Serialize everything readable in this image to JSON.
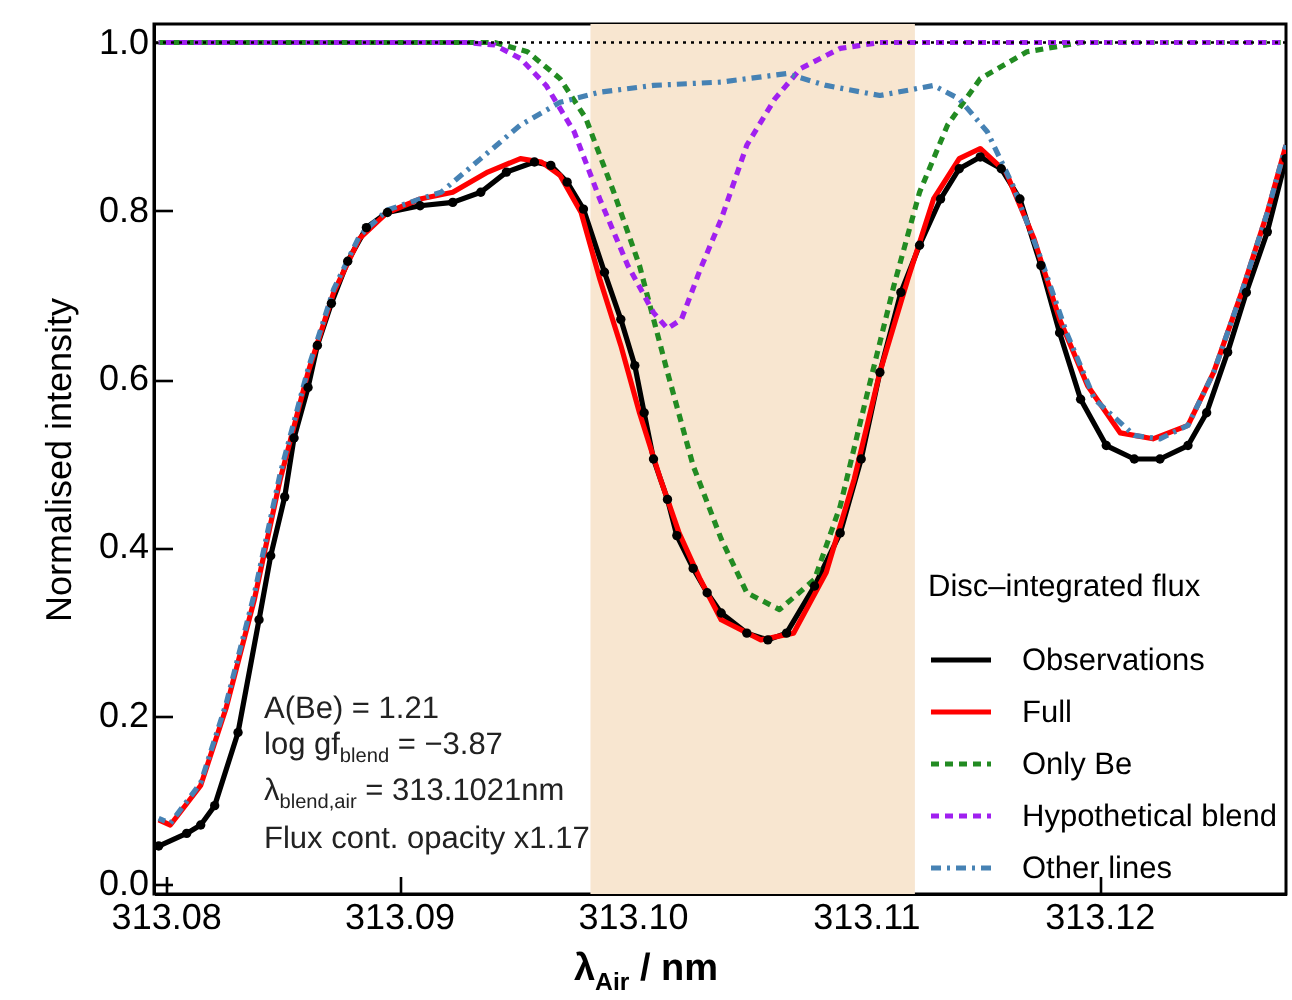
{
  "chart_data": {
    "type": "line",
    "xlabel": "λ$_{Air}$ / nm",
    "ylabel": "Normalised intensity",
    "legend_title": "Disc–integrated flux",
    "legend": "bottom right",
    "xlim": [
      313.0795,
      313.128
    ],
    "ylim": [
      -0.012,
      1.022
    ],
    "xticks": [
      313.08,
      313.09,
      {
        "value": 313.1,
        "label": "313.10"
      },
      313.11,
      313.12
    ],
    "yticks": [
      {
        "value": 0,
        "label": "0.0"
      },
      0.2,
      0.4,
      0.6,
      0.8,
      {
        "value": 1,
        "label": "1.0"
      }
    ],
    "bands": [
      {
        "axis": "x",
        "from": 313.0982,
        "to": 313.1121,
        "color": "#f8e6d0"
      }
    ],
    "ref_lines": [
      {
        "axis": "y",
        "value": 1,
        "color": "#000000",
        "line_style": "dotted"
      }
    ],
    "annotations": [
      "A(Be) = 1.21",
      "log gf$_{blend}$ = −3.87",
      "λ$_{blend,air}$ = 313.1021nm",
      "Flux cont. opacity x1.17"
    ],
    "series": [
      {
        "name": "Observations",
        "color": "#000000",
        "line_style": "solid",
        "marker": "circle",
        "x": [
          313.0797,
          313.0809,
          313.0815,
          313.0821,
          313.0831,
          313.084,
          313.0845,
          313.0851,
          313.0855,
          313.0861,
          313.0865,
          313.0871,
          313.0878,
          313.0886,
          313.0895,
          313.0909,
          313.0923,
          313.0935,
          313.0946,
          313.0958,
          313.0965,
          313.0972,
          313.0979,
          313.0988,
          313.0995,
          313.1001,
          313.1005,
          313.1009,
          313.1015,
          313.1019,
          313.1026,
          313.1032,
          313.1038,
          313.1049,
          313.1058,
          313.1066,
          313.1078,
          313.1089,
          313.1098,
          313.1106,
          313.1115,
          313.1123,
          313.1132,
          313.114,
          313.1149,
          313.1158,
          313.1166,
          313.1175,
          313.1183,
          313.1192,
          313.1203,
          313.1215,
          313.1226,
          313.1238,
          313.1246,
          313.1255,
          313.1263,
          313.1272,
          313.128
        ],
        "values": [
          0.045,
          0.06,
          0.07,
          0.093,
          0.18,
          0.314,
          0.39,
          0.46,
          0.53,
          0.59,
          0.64,
          0.69,
          0.74,
          0.78,
          0.798,
          0.806,
          0.81,
          0.822,
          0.846,
          0.858,
          0.854,
          0.834,
          0.802,
          0.727,
          0.671,
          0.616,
          0.56,
          0.505,
          0.457,
          0.414,
          0.375,
          0.346,
          0.322,
          0.298,
          0.29,
          0.298,
          0.354,
          0.417,
          0.505,
          0.608,
          0.703,
          0.759,
          0.814,
          0.85,
          0.864,
          0.85,
          0.814,
          0.735,
          0.655,
          0.576,
          0.521,
          0.505,
          0.505,
          0.521,
          0.56,
          0.632,
          0.703,
          0.775,
          0.862
        ]
      },
      {
        "name": "Full",
        "color": "#ff0000",
        "line_style": "solid",
        "x": [
          313.0797,
          313.0802,
          313.0815,
          313.0826,
          313.0838,
          313.0849,
          313.0861,
          313.0872,
          313.0883,
          313.0895,
          313.0909,
          313.0923,
          313.0938,
          313.0952,
          313.0961,
          313.0969,
          313.0978,
          313.0986,
          313.0995,
          313.1003,
          313.1012,
          313.102,
          313.1029,
          313.1038,
          313.1055,
          313.1069,
          313.1083,
          313.1095,
          313.1106,
          313.1118,
          313.1129,
          313.114,
          313.1149,
          313.116,
          313.1172,
          313.1183,
          313.1195,
          313.1209,
          313.1223,
          313.1238,
          313.1249,
          313.1261,
          313.1272,
          313.128
        ],
        "values": [
          0.076,
          0.07,
          0.117,
          0.21,
          0.338,
          0.48,
          0.608,
          0.703,
          0.767,
          0.798,
          0.814,
          0.822,
          0.846,
          0.862,
          0.858,
          0.842,
          0.798,
          0.719,
          0.64,
          0.56,
          0.481,
          0.417,
          0.362,
          0.314,
          0.29,
          0.298,
          0.37,
          0.481,
          0.608,
          0.719,
          0.814,
          0.862,
          0.874,
          0.846,
          0.767,
          0.671,
          0.592,
          0.536,
          0.529,
          0.545,
          0.608,
          0.703,
          0.798,
          0.878
        ]
      },
      {
        "name": "Only Be",
        "color": "#228b22",
        "line_style": "dashed",
        "x": [
          313.0797,
          313.0941,
          313.0955,
          313.0969,
          313.098,
          313.0992,
          313.1003,
          313.1015,
          313.1026,
          313.1038,
          313.1049,
          313.1063,
          313.1078,
          313.1089,
          313.11,
          313.1112,
          313.1123,
          313.1135,
          313.1149,
          313.1169,
          313.1192,
          313.128
        ],
        "values": [
          1.0,
          1.0,
          0.989,
          0.957,
          0.91,
          0.822,
          0.735,
          0.608,
          0.497,
          0.41,
          0.346,
          0.326,
          0.362,
          0.449,
          0.576,
          0.711,
          0.822,
          0.902,
          0.957,
          0.989,
          1.0,
          1.0
        ]
      },
      {
        "name": "Hypothetical blend",
        "color": "#a020f0",
        "line_style": "dashed",
        "x": [
          313.0797,
          313.0929,
          313.0941,
          313.0952,
          313.0963,
          313.0975,
          313.0986,
          313.0998,
          313.1009,
          313.1015,
          313.1021,
          313.1029,
          313.1038,
          313.1049,
          313.1061,
          313.1072,
          313.1089,
          313.1106,
          313.128
        ],
        "values": [
          1.0,
          1.0,
          0.997,
          0.981,
          0.949,
          0.894,
          0.814,
          0.735,
          0.679,
          0.66,
          0.671,
          0.73,
          0.79,
          0.878,
          0.933,
          0.969,
          0.993,
          1.0,
          1.0
        ]
      },
      {
        "name": "Other lines",
        "color": "#4682b4",
        "line_style": "dashdot",
        "x": [
          313.0797,
          313.0802,
          313.0815,
          313.0826,
          313.0838,
          313.0849,
          313.0861,
          313.0872,
          313.0883,
          313.0895,
          313.0909,
          313.0918,
          313.0935,
          313.0952,
          313.0969,
          313.0986,
          313.1009,
          313.1038,
          313.1049,
          313.1066,
          313.1083,
          313.1106,
          313.1129,
          313.114,
          313.1152,
          313.1163,
          313.1175,
          313.1186,
          313.1198,
          313.1215,
          313.1226,
          313.1238,
          313.1249,
          313.1261,
          313.1272,
          313.128
        ],
        "values": [
          0.078,
          0.072,
          0.12,
          0.215,
          0.345,
          0.487,
          0.612,
          0.707,
          0.77,
          0.801,
          0.814,
          0.822,
          0.862,
          0.902,
          0.929,
          0.941,
          0.949,
          0.953,
          0.957,
          0.963,
          0.949,
          0.937,
          0.949,
          0.933,
          0.894,
          0.83,
          0.743,
          0.655,
          0.576,
          0.533,
          0.529,
          0.545,
          0.608,
          0.703,
          0.798,
          0.878
        ]
      }
    ]
  }
}
